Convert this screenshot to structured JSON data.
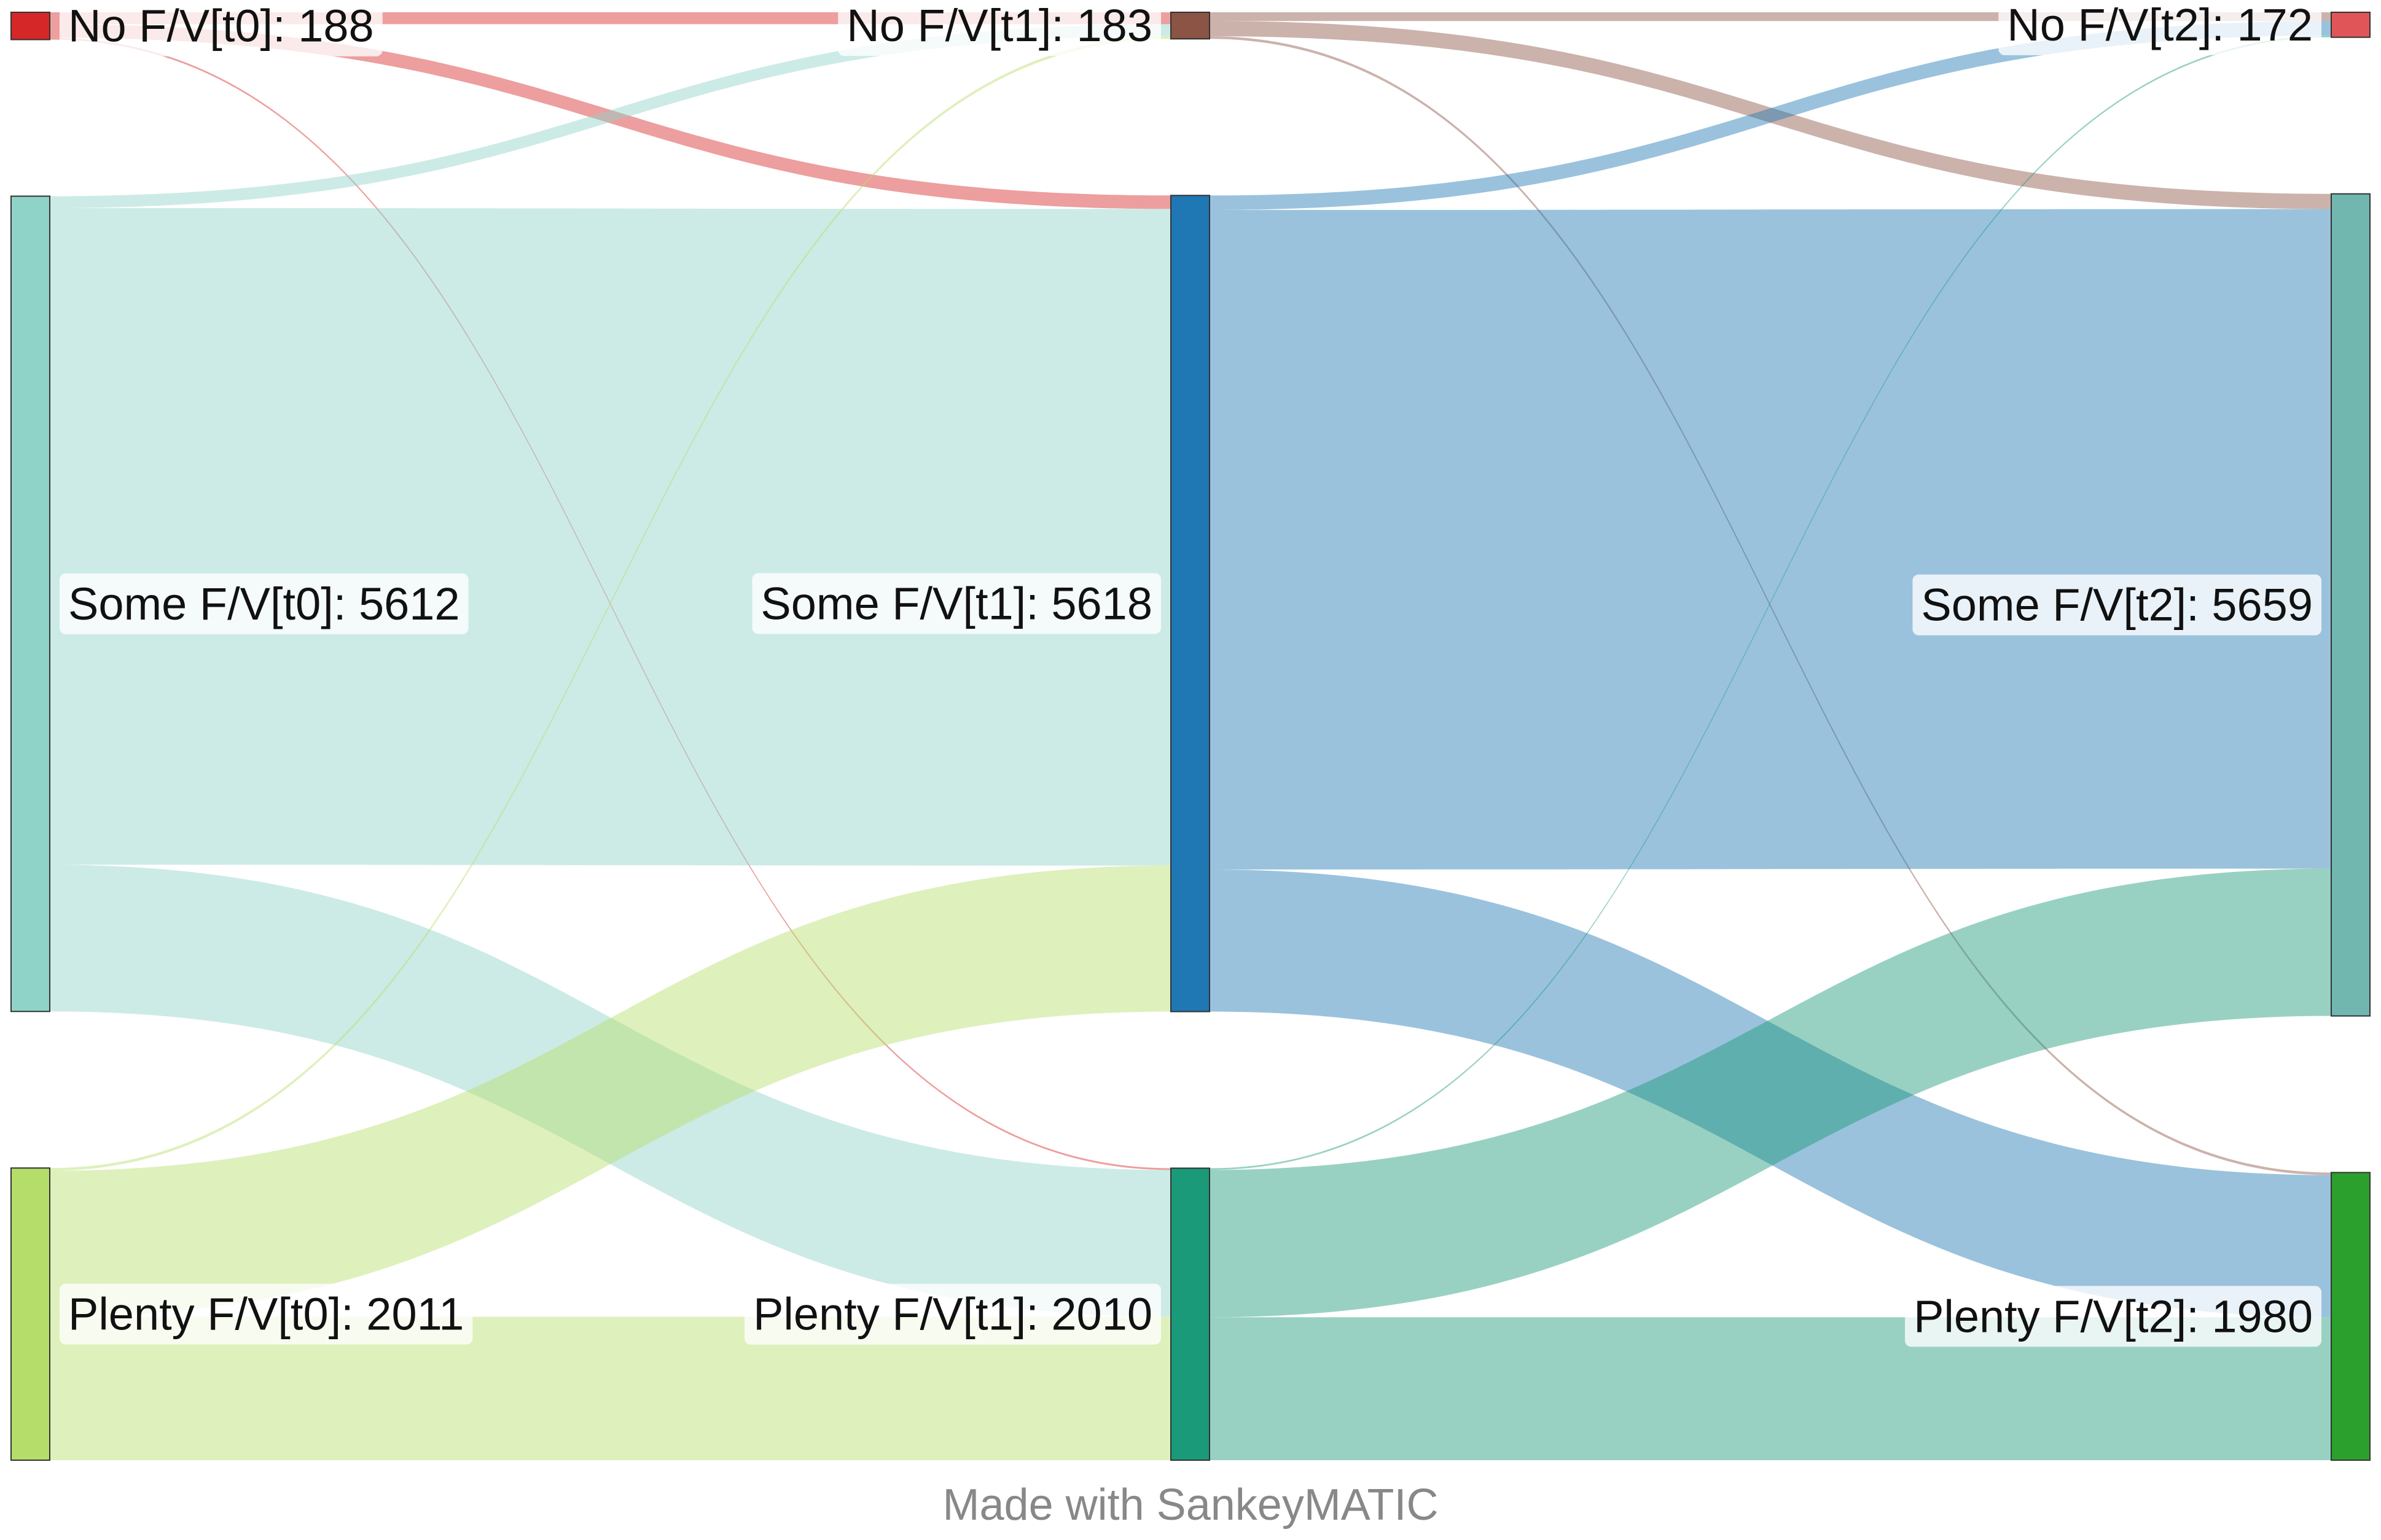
{
  "credit": "Made with SankeyMATIC",
  "chart_data": {
    "type": "sankey",
    "stages": [
      "t0",
      "t1",
      "t2"
    ],
    "nodes": [
      {
        "id": "no_t0",
        "label": "No F/V[t0]: 188",
        "value": 188,
        "stage": 0,
        "color": "#d62728"
      },
      {
        "id": "some_t0",
        "label": "Some F/V[t0]: 5612",
        "value": 5612,
        "stage": 0,
        "color": "#8fd3c8"
      },
      {
        "id": "plenty_t0",
        "label": "Plenty F/V[t0]: 2011",
        "value": 2011,
        "stage": 0,
        "color": "#b5dd6a"
      },
      {
        "id": "no_t1",
        "label": "No F/V[t1]: 183",
        "value": 183,
        "stage": 1,
        "color": "#8c5444"
      },
      {
        "id": "some_t1",
        "label": "Some F/V[t1]: 5618",
        "value": 5618,
        "stage": 1,
        "color": "#1f77b4"
      },
      {
        "id": "plenty_t1",
        "label": "Plenty F/V[t1]: 2010",
        "value": 2010,
        "stage": 1,
        "color": "#1a9a78"
      },
      {
        "id": "no_t2",
        "label": "No F/V[t2]: 172",
        "value": 172,
        "stage": 2,
        "color": "#e05558"
      },
      {
        "id": "some_t2",
        "label": "Some F/V[t2]: 5659",
        "value": 5659,
        "stage": 2,
        "color": "#72b6b0"
      },
      {
        "id": "plenty_t2",
        "label": "Plenty F/V[t2]: 1980",
        "value": 1980,
        "stage": 2,
        "color": "#2ca02c"
      }
    ],
    "links": [
      {
        "source": "no_t0",
        "target": "no_t1",
        "value": 82
      },
      {
        "source": "no_t0",
        "target": "some_t1",
        "value": 93
      },
      {
        "source": "no_t0",
        "target": "plenty_t1",
        "value": 13
      },
      {
        "source": "some_t0",
        "target": "no_t1",
        "value": 82
      },
      {
        "source": "some_t0",
        "target": "some_t1",
        "value": 4520
      },
      {
        "source": "some_t0",
        "target": "plenty_t1",
        "value": 1010
      },
      {
        "source": "plenty_t0",
        "target": "no_t1",
        "value": 19
      },
      {
        "source": "plenty_t0",
        "target": "some_t1",
        "value": 1005
      },
      {
        "source": "plenty_t0",
        "target": "plenty_t1",
        "value": 987
      },
      {
        "source": "no_t1",
        "target": "no_t2",
        "value": 60
      },
      {
        "source": "no_t1",
        "target": "some_t2",
        "value": 105
      },
      {
        "source": "no_t1",
        "target": "plenty_t2",
        "value": 18
      },
      {
        "source": "some_t1",
        "target": "no_t2",
        "value": 100
      },
      {
        "source": "some_t1",
        "target": "some_t2",
        "value": 4540
      },
      {
        "source": "some_t1",
        "target": "plenty_t2",
        "value": 978
      },
      {
        "source": "plenty_t1",
        "target": "no_t2",
        "value": 12
      },
      {
        "source": "plenty_t1",
        "target": "some_t2",
        "value": 1014
      },
      {
        "source": "plenty_t1",
        "target": "plenty_t2",
        "value": 984
      }
    ]
  }
}
